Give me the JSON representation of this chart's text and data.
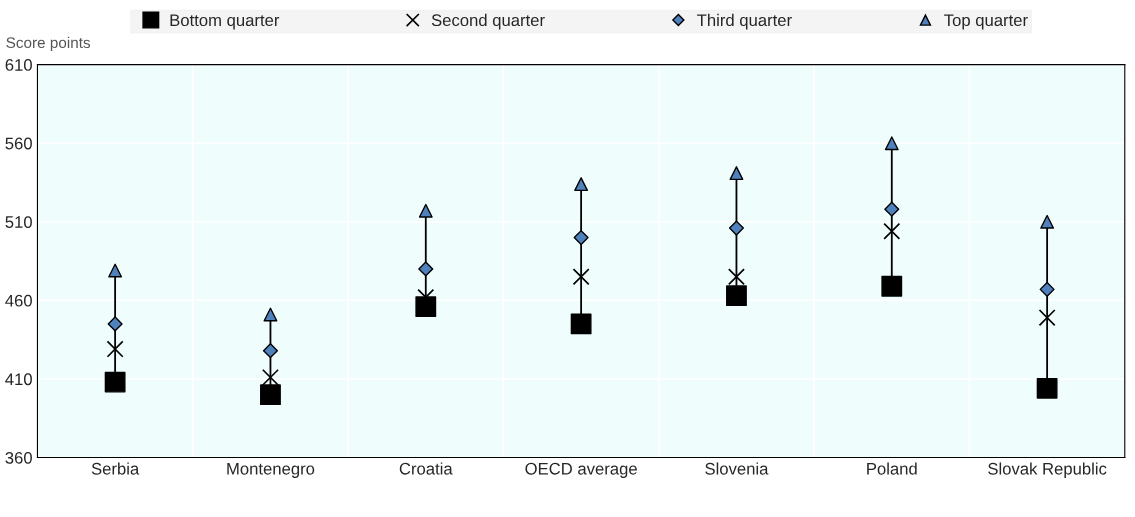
{
  "chart_data": {
    "type": "scatter",
    "ylabel": "Score points",
    "categories": [
      "Serbia",
      "Montenegro",
      "Croatia",
      "OECD average",
      "Slovenia",
      "Poland",
      "Slovak Republic"
    ],
    "series": [
      {
        "name": "Bottom quarter",
        "color": "#000000",
        "marker": "square",
        "values": [
          408,
          400,
          456,
          445,
          463,
          469,
          404
        ]
      },
      {
        "name": "Second quarter",
        "color": "#000000",
        "marker": "cross",
        "values": [
          429,
          411,
          462,
          475,
          475,
          504,
          449
        ]
      },
      {
        "name": "Third quarter",
        "color": "#4f81bd",
        "marker": "diamond",
        "values": [
          445,
          428,
          480,
          500,
          506,
          518,
          467
        ]
      },
      {
        "name": "Top quarter",
        "color": "#4f81bd",
        "marker": "triangle",
        "values": [
          479,
          451,
          517,
          534,
          541,
          560,
          510
        ]
      }
    ],
    "ylim": [
      360,
      610
    ],
    "yticks": [
      360,
      410,
      460,
      510,
      560,
      610
    ],
    "grid": true,
    "legend": "top"
  }
}
